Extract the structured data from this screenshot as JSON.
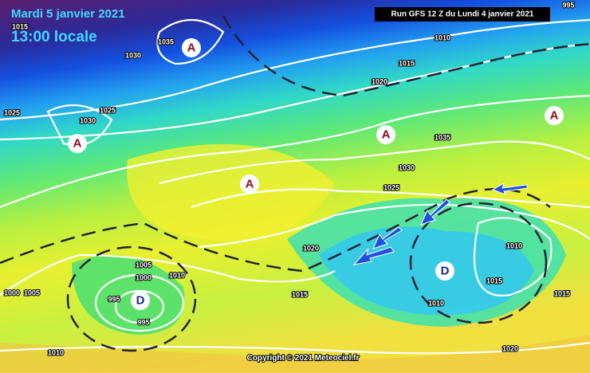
{
  "header": {
    "date": "Mardi 5 janvier 2021",
    "time": "13:00 locale",
    "run": "Run GFS 12 Z du Lundi 4 janvier 2021"
  },
  "footer": {
    "copyright": "Copyright © 2021 Meteociel.fr"
  },
  "pressure_centers": [
    "A",
    "A",
    "A",
    "A",
    "A",
    "D",
    "D"
  ],
  "isobar_labels": [
    1035,
    1030,
    1025,
    1025,
    1030,
    1010,
    1015,
    1020,
    1035,
    1030,
    1025,
    1020,
    1015,
    1010,
    1005,
    1000,
    995,
    995,
    1000,
    1005,
    1010,
    1015,
    1010,
    1015,
    1020,
    1010,
    995,
    1015
  ]
}
